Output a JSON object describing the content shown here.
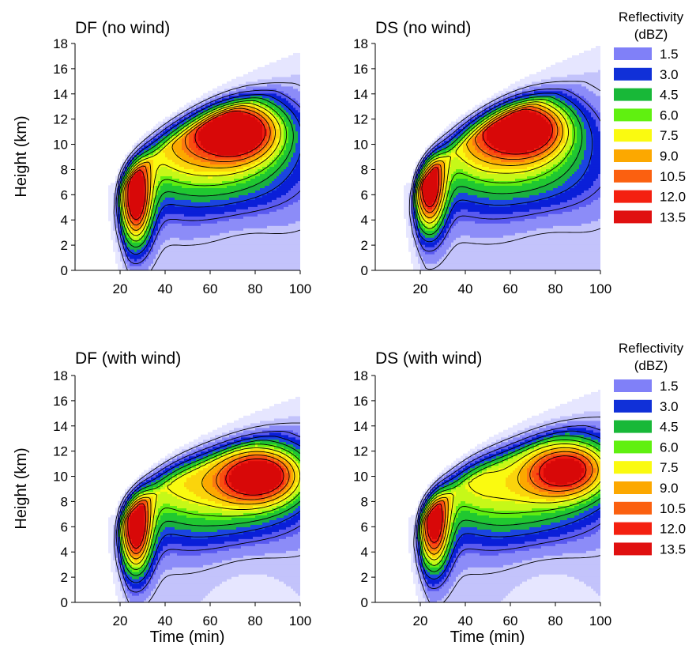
{
  "colors": {
    "levels": [
      "#ffffff",
      "#e6e6ff",
      "#c3c3fb",
      "#8c8cf8",
      "#5a5af0",
      "#0a1fd8",
      "#1b45e0",
      "#1ab040",
      "#20c830",
      "#60ee10",
      "#c6f818",
      "#fafa10",
      "#fbd40c",
      "#fca800",
      "#fb7a10",
      "#f84e10",
      "#f01a10",
      "#d80808"
    ],
    "contour": "#000000"
  },
  "legend": {
    "title_line1": "Reflectivity",
    "title_line2": "(dBZ)",
    "items": [
      {
        "label": "1.5",
        "color": "#8080f8"
      },
      {
        "label": "3.0",
        "color": "#1030d8"
      },
      {
        "label": "4.5",
        "color": "#18b838"
      },
      {
        "label": "6.0",
        "color": "#60f010"
      },
      {
        "label": "7.5",
        "color": "#fafa10"
      },
      {
        "label": "9.0",
        "color": "#fca800"
      },
      {
        "label": "10.5",
        "color": "#fb6010"
      },
      {
        "label": "12.0",
        "color": "#f42010"
      },
      {
        "label": "13.5",
        "color": "#e01010"
      }
    ]
  },
  "chart_data": [
    {
      "type": "heatmap",
      "title": "DF (no wind)",
      "ylabel": "Height (km)",
      "xlabel": "",
      "xlim": [
        0,
        100
      ],
      "ylim": [
        0,
        18
      ],
      "xticks": [
        20,
        40,
        60,
        80,
        100
      ],
      "yticks": [
        0,
        2,
        4,
        6,
        8,
        10,
        12,
        14,
        16,
        18
      ],
      "z_unit": "dBZ",
      "features": {
        "echo_onset_min": 18,
        "top_start_km": 7,
        "top_end_km": 17.5,
        "lower_core": {
          "x": 27,
          "y": 5.5,
          "value": 13.5
        },
        "upper_core": {
          "x": 72,
          "y": 11.3,
          "value": 13.5
        },
        "mid_level_value": 7.5,
        "low_level_value": 2.0
      }
    },
    {
      "type": "heatmap",
      "title": "DS (no wind)",
      "ylabel": "",
      "xlabel": "",
      "xlim": [
        0,
        100
      ],
      "ylim": [
        0,
        18
      ],
      "xticks": [
        20,
        40,
        60,
        80,
        100
      ],
      "yticks": [
        0,
        2,
        4,
        6,
        8,
        10,
        12,
        14,
        16,
        18
      ],
      "z_unit": "dBZ",
      "features": {
        "echo_onset_min": 16,
        "top_start_km": 7,
        "top_end_km": 18,
        "lower_core": {
          "x": 24,
          "y": 6.5,
          "value": 13.0
        },
        "upper_core": {
          "x": 66,
          "y": 11.5,
          "value": 13.5
        },
        "mid_level_value": 7.0,
        "low_level_value": 2.0
      }
    },
    {
      "type": "heatmap",
      "title": "DF (with wind)",
      "ylabel": "Height (km)",
      "xlabel": "Time (min)",
      "xlim": [
        0,
        100
      ],
      "ylim": [
        0,
        18
      ],
      "xticks": [
        20,
        40,
        60,
        80,
        100
      ],
      "yticks": [
        0,
        2,
        4,
        6,
        8,
        10,
        12,
        14,
        16,
        18
      ],
      "z_unit": "dBZ",
      "features": {
        "echo_onset_min": 18,
        "top_start_km": 7,
        "top_end_km": 16.5,
        "lower_core": {
          "x": 27,
          "y": 5.8,
          "value": 13.5
        },
        "upper_core": {
          "x": 83,
          "y": 10.2,
          "value": 12.0
        },
        "mid_level_value": 7.0,
        "low_level_value": 1.0
      }
    },
    {
      "type": "heatmap",
      "title": "DS (with wind)",
      "ylabel": "",
      "xlabel": "Time (min)",
      "xlim": [
        0,
        100
      ],
      "ylim": [
        0,
        18
      ],
      "xticks": [
        20,
        40,
        60,
        80,
        100
      ],
      "yticks": [
        0,
        2,
        4,
        6,
        8,
        10,
        12,
        14,
        16,
        18
      ],
      "z_unit": "dBZ",
      "features": {
        "echo_onset_min": 18,
        "top_start_km": 7,
        "top_end_km": 17,
        "lower_core": {
          "x": 26,
          "y": 6.0,
          "value": 12.5
        },
        "upper_core": {
          "x": 86,
          "y": 10.7,
          "value": 11.5
        },
        "mid_level_value": 7.0,
        "low_level_value": 1.0
      }
    }
  ]
}
